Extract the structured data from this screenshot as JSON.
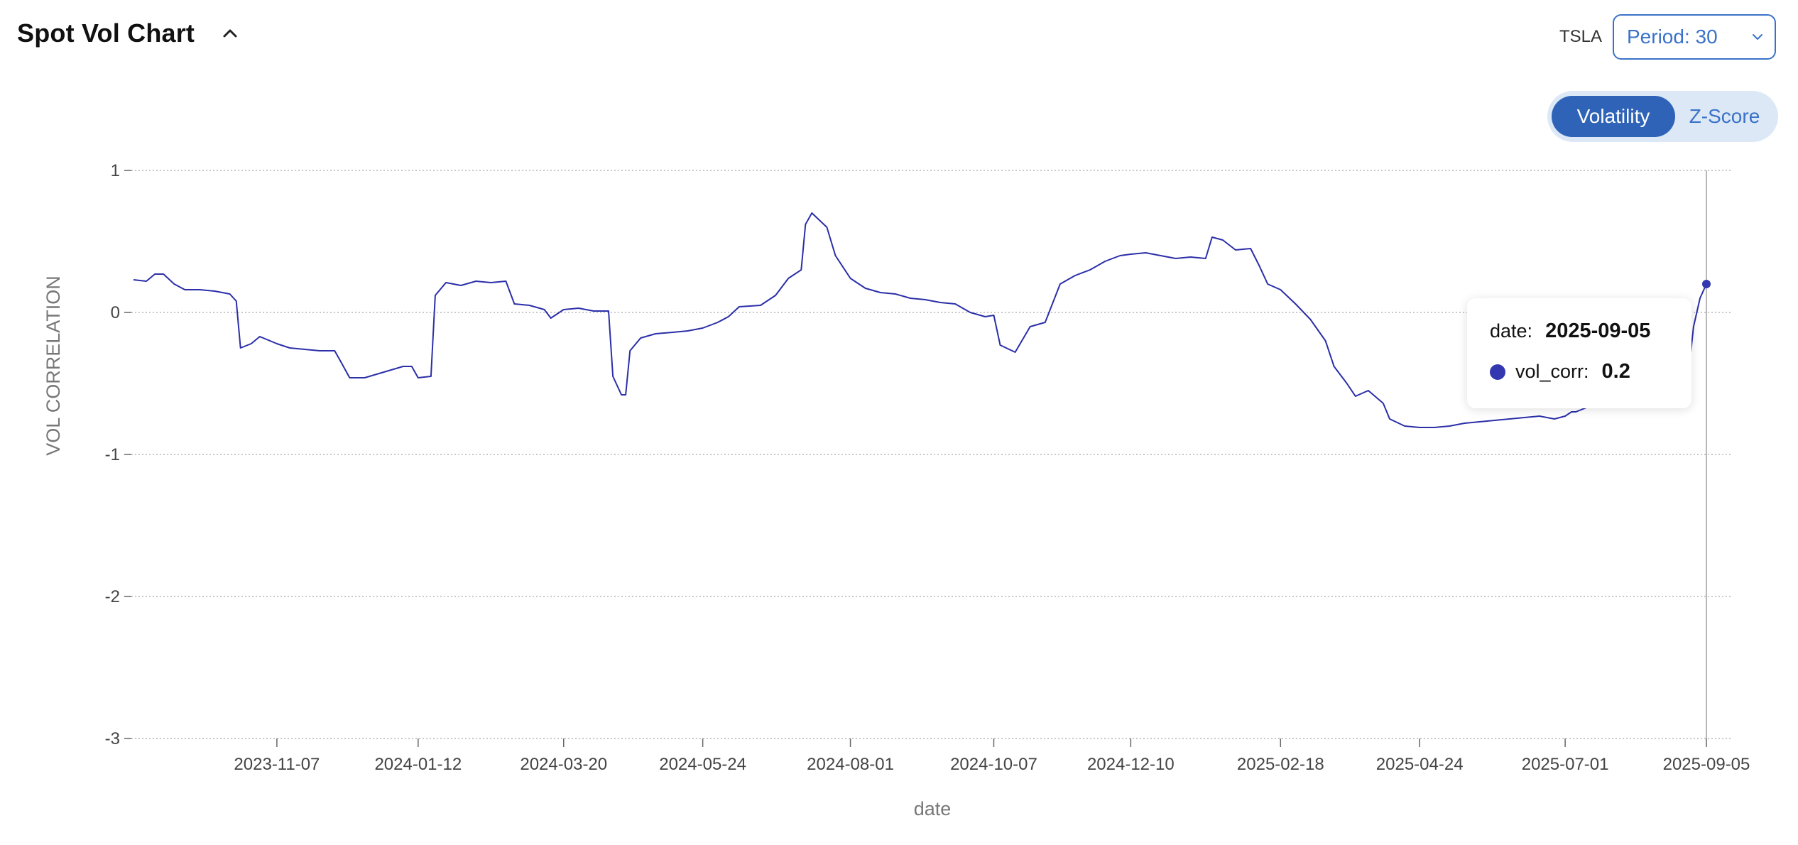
{
  "header": {
    "title": "Spot Vol Chart",
    "collapse_icon": "chevron-up-icon"
  },
  "controls": {
    "ticker": "TSLA",
    "period_label": "Period: 30",
    "period_icon": "chevron-down-icon",
    "toggle": {
      "active": "Volatility",
      "inactive": "Z-Score"
    }
  },
  "colors": {
    "accent": "#2f63b7",
    "line": "#2b2fa8",
    "tooltip_dot": "#3338b0"
  },
  "tooltip": {
    "date_key": "date:",
    "date_value": "2025-09-05",
    "series_key": "vol_corr:",
    "series_value": "0.2"
  },
  "chart_data": {
    "type": "line",
    "xlabel": "date",
    "ylabel": "VOL CORRELATION",
    "ylim": [
      -3,
      1
    ],
    "yticks": [
      "1",
      "0",
      "-1",
      "-2",
      "-3"
    ],
    "xtick_labels": [
      "2023-11-07",
      "2024-01-12",
      "2024-03-20",
      "2024-05-24",
      "2024-08-01",
      "2024-10-07",
      "2024-12-10",
      "2025-02-18",
      "2025-04-24",
      "2025-07-01",
      "2025-09-05"
    ],
    "grid": true,
    "cursor_date": "2025-09-05",
    "series": [
      {
        "name": "vol_corr",
        "points": [
          [
            "2023-09-01",
            0.23
          ],
          [
            "2023-09-07",
            0.22
          ],
          [
            "2023-09-11",
            0.27
          ],
          [
            "2023-09-15",
            0.27
          ],
          [
            "2023-09-20",
            0.2
          ],
          [
            "2023-09-25",
            0.16
          ],
          [
            "2023-10-02",
            0.16
          ],
          [
            "2023-10-09",
            0.15
          ],
          [
            "2023-10-16",
            0.13
          ],
          [
            "2023-10-19",
            0.08
          ],
          [
            "2023-10-21",
            -0.25
          ],
          [
            "2023-10-26",
            -0.22
          ],
          [
            "2023-10-30",
            -0.17
          ],
          [
            "2023-11-07",
            -0.22
          ],
          [
            "2023-11-13",
            -0.25
          ],
          [
            "2023-11-20",
            -0.26
          ],
          [
            "2023-11-27",
            -0.27
          ],
          [
            "2023-12-04",
            -0.27
          ],
          [
            "2023-12-07",
            -0.35
          ],
          [
            "2023-12-11",
            -0.46
          ],
          [
            "2023-12-18",
            -0.46
          ],
          [
            "2023-12-27",
            -0.42
          ],
          [
            "2024-01-05",
            -0.38
          ],
          [
            "2024-01-09",
            -0.38
          ],
          [
            "2024-01-12",
            -0.46
          ],
          [
            "2024-01-18",
            -0.45
          ],
          [
            "2024-01-20",
            0.12
          ],
          [
            "2024-01-25",
            0.21
          ],
          [
            "2024-02-01",
            0.19
          ],
          [
            "2024-02-08",
            0.22
          ],
          [
            "2024-02-15",
            0.21
          ],
          [
            "2024-02-22",
            0.22
          ],
          [
            "2024-02-26",
            0.06
          ],
          [
            "2024-03-04",
            0.05
          ],
          [
            "2024-03-11",
            0.02
          ],
          [
            "2024-03-14",
            -0.04
          ],
          [
            "2024-03-20",
            0.02
          ],
          [
            "2024-03-27",
            0.03
          ],
          [
            "2024-04-03",
            0.01
          ],
          [
            "2024-04-10",
            0.01
          ],
          [
            "2024-04-12",
            -0.45
          ],
          [
            "2024-04-16",
            -0.58
          ],
          [
            "2024-04-18",
            -0.58
          ],
          [
            "2024-04-20",
            -0.27
          ],
          [
            "2024-04-25",
            -0.18
          ],
          [
            "2024-05-02",
            -0.15
          ],
          [
            "2024-05-10",
            -0.14
          ],
          [
            "2024-05-17",
            -0.13
          ],
          [
            "2024-05-24",
            -0.11
          ],
          [
            "2024-05-31",
            -0.07
          ],
          [
            "2024-06-05",
            -0.03
          ],
          [
            "2024-06-10",
            0.04
          ],
          [
            "2024-06-20",
            0.05
          ],
          [
            "2024-06-27",
            0.12
          ],
          [
            "2024-07-03",
            0.24
          ],
          [
            "2024-07-09",
            0.3
          ],
          [
            "2024-07-11",
            0.62
          ],
          [
            "2024-07-14",
            0.7
          ],
          [
            "2024-07-21",
            0.6
          ],
          [
            "2024-07-25",
            0.4
          ],
          [
            "2024-08-01",
            0.24
          ],
          [
            "2024-08-08",
            0.17
          ],
          [
            "2024-08-15",
            0.14
          ],
          [
            "2024-08-22",
            0.13
          ],
          [
            "2024-08-29",
            0.1
          ],
          [
            "2024-09-05",
            0.09
          ],
          [
            "2024-09-12",
            0.07
          ],
          [
            "2024-09-19",
            0.06
          ],
          [
            "2024-09-26",
            0.0
          ],
          [
            "2024-10-03",
            -0.03
          ],
          [
            "2024-10-07",
            -0.02
          ],
          [
            "2024-10-10",
            -0.23
          ],
          [
            "2024-10-17",
            -0.28
          ],
          [
            "2024-10-24",
            -0.1
          ],
          [
            "2024-10-31",
            -0.07
          ],
          [
            "2024-11-07",
            0.2
          ],
          [
            "2024-11-14",
            0.26
          ],
          [
            "2024-11-21",
            0.3
          ],
          [
            "2024-11-28",
            0.36
          ],
          [
            "2024-12-05",
            0.4
          ],
          [
            "2024-12-10",
            0.41
          ],
          [
            "2024-12-17",
            0.42
          ],
          [
            "2024-12-24",
            0.4
          ],
          [
            "2024-12-31",
            0.38
          ],
          [
            "2025-01-07",
            0.39
          ],
          [
            "2025-01-14",
            0.38
          ],
          [
            "2025-01-17",
            0.53
          ],
          [
            "2025-01-22",
            0.51
          ],
          [
            "2025-01-28",
            0.44
          ],
          [
            "2025-02-04",
            0.45
          ],
          [
            "2025-02-08",
            0.33
          ],
          [
            "2025-02-12",
            0.2
          ],
          [
            "2025-02-18",
            0.16
          ],
          [
            "2025-02-25",
            0.06
          ],
          [
            "2025-03-04",
            -0.05
          ],
          [
            "2025-03-11",
            -0.2
          ],
          [
            "2025-03-15",
            -0.38
          ],
          [
            "2025-03-21",
            -0.5
          ],
          [
            "2025-03-25",
            -0.59
          ],
          [
            "2025-03-31",
            -0.55
          ],
          [
            "2025-04-07",
            -0.64
          ],
          [
            "2025-04-10",
            -0.75
          ],
          [
            "2025-04-17",
            -0.8
          ],
          [
            "2025-04-24",
            -0.81
          ],
          [
            "2025-05-01",
            -0.81
          ],
          [
            "2025-05-08",
            -0.8
          ],
          [
            "2025-05-15",
            -0.78
          ],
          [
            "2025-05-22",
            -0.77
          ],
          [
            "2025-05-29",
            -0.76
          ],
          [
            "2025-06-05",
            -0.75
          ],
          [
            "2025-06-12",
            -0.74
          ],
          [
            "2025-06-19",
            -0.73
          ],
          [
            "2025-06-26",
            -0.75
          ],
          [
            "2025-07-01",
            -0.73
          ],
          [
            "2025-07-04",
            -0.7
          ],
          [
            "2025-07-06",
            -0.7
          ],
          [
            "2025-08-28",
            -0.38
          ],
          [
            "2025-08-30",
            -0.1
          ],
          [
            "2025-09-02",
            0.1
          ],
          [
            "2025-09-05",
            0.2
          ]
        ]
      }
    ]
  }
}
